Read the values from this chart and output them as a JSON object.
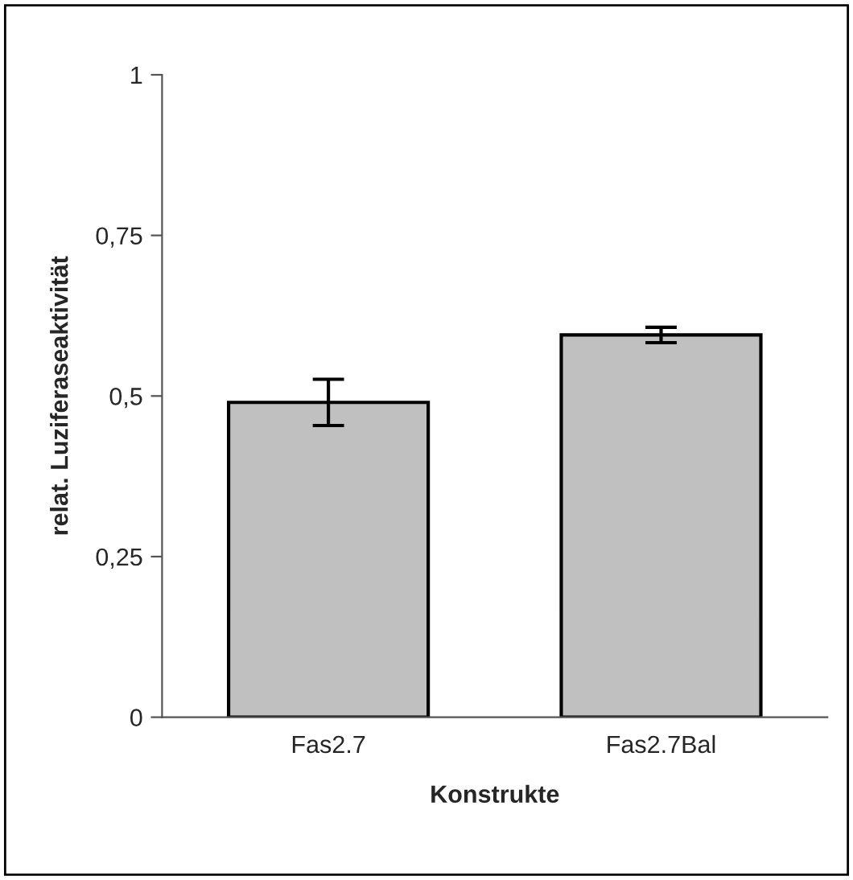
{
  "chart_data": {
    "type": "bar",
    "xlabel": "Konstrukte",
    "ylabel": "relat. Luziferaseaktivität",
    "categories": [
      "Fas2.7",
      "Fas2.7Bal"
    ],
    "values": [
      0.49,
      0.595
    ],
    "errors": [
      0.036,
      0.012
    ],
    "color": "#c0c0c0",
    "ylim": [
      0,
      1
    ],
    "yticks": [
      {
        "value": 0,
        "label": "0"
      },
      {
        "value": 0.25,
        "label": "0,25"
      },
      {
        "value": 0.5,
        "label": "0,5"
      },
      {
        "value": 0.75,
        "label": "0,75"
      },
      {
        "value": 1,
        "label": "1"
      }
    ],
    "grid": false,
    "legend": false
  }
}
